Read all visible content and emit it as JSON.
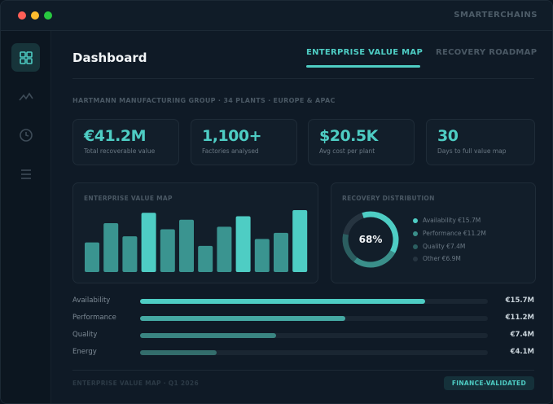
{
  "window": {
    "brand": "SMARTERCHAINS"
  },
  "sidebar": {
    "items": [
      {
        "icon": "grid-icon",
        "active": true
      },
      {
        "icon": "activity-icon"
      },
      {
        "icon": "clock-icon"
      },
      {
        "icon": "menu-icon"
      }
    ]
  },
  "header": {
    "title": "Dashboard",
    "tabs": [
      {
        "label": "ENTERPRISE VALUE MAP",
        "active": true
      },
      {
        "label": "RECOVERY ROADMAP"
      }
    ]
  },
  "subtitle": "HARTMANN MANUFACTURING GROUP · 34 PLANTS · EUROPE & APAC",
  "kpis": [
    {
      "value": "€41.2M",
      "label": "Total recoverable value"
    },
    {
      "value": "1,100+",
      "label": "Factories analysed"
    },
    {
      "value": "$20.5K",
      "label": "Avg cost per plant"
    },
    {
      "value": "30",
      "label": "Days to full value map"
    }
  ],
  "chart_data": [
    {
      "type": "bar",
      "title": "ENTERPRISE VALUE MAP",
      "values": [
        34,
        56,
        41,
        68,
        49,
        60,
        30,
        52,
        64,
        38,
        45,
        71
      ],
      "highlighted": [
        3,
        8,
        11
      ]
    },
    {
      "type": "pie",
      "title": "RECOVERY DISTRIBUTION",
      "center_label": "68%",
      "slices": [
        {
          "label": "Availability €15.7M",
          "value": 15.7,
          "color": "#4ecdc4"
        },
        {
          "label": "Performance €11.2M",
          "value": 11.2,
          "color": "#3a8f8a"
        },
        {
          "label": "Quality €7.4M",
          "value": 7.4,
          "color": "#2b5e60"
        },
        {
          "label": "Other €6.9M",
          "value": 6.9,
          "color": "#263440"
        }
      ]
    }
  ],
  "breakdown": [
    {
      "label": "Availability",
      "value": "€15.7M",
      "fraction": 0.82,
      "color": "#4ecdc4"
    },
    {
      "label": "Performance",
      "value": "€11.2M",
      "fraction": 0.59,
      "color": "#45a9a3"
    },
    {
      "label": "Quality",
      "value": "€7.4M",
      "fraction": 0.39,
      "color": "#3a8582"
    },
    {
      "label": "Energy",
      "value": "€4.1M",
      "fraction": 0.22,
      "color": "#336d6c"
    }
  ],
  "footer": {
    "label": "ENTERPRISE VALUE MAP · Q1 2026",
    "badge": "FINANCE-VALIDATED"
  },
  "colors": {
    "accent": "#4ecdc4",
    "bar": "#3a9490"
  }
}
